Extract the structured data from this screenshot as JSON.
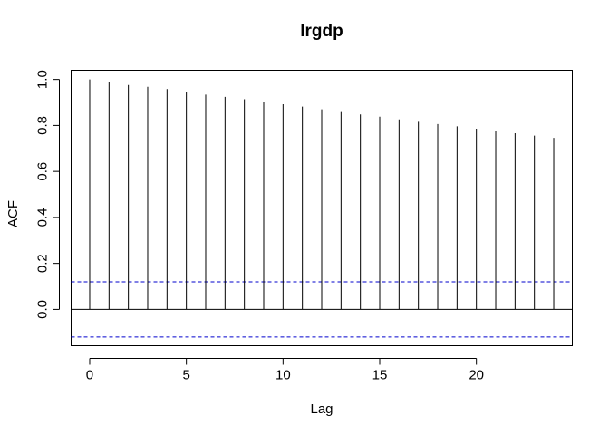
{
  "chart_data": {
    "type": "bar",
    "title": "lrgdp",
    "xlabel": "Lag",
    "ylabel": "ACF",
    "x": [
      0,
      1,
      2,
      3,
      4,
      5,
      6,
      7,
      8,
      9,
      10,
      11,
      12,
      13,
      14,
      15,
      16,
      17,
      18,
      19,
      20,
      21,
      22,
      23,
      24
    ],
    "values": [
      1.0,
      0.988,
      0.976,
      0.968,
      0.958,
      0.946,
      0.934,
      0.924,
      0.914,
      0.902,
      0.892,
      0.882,
      0.87,
      0.858,
      0.848,
      0.838,
      0.826,
      0.816,
      0.806,
      0.796,
      0.786,
      0.776,
      0.766,
      0.756,
      0.746
    ],
    "confidence_bound": 0.12,
    "xlim": [
      -0.96,
      24.96
    ],
    "ylim": [
      -0.158,
      1.04
    ],
    "xticks": [
      0,
      5,
      10,
      15,
      20
    ],
    "yticks": [
      0.0,
      0.2,
      0.4,
      0.6,
      0.8,
      1.0
    ],
    "ytick_labels": [
      "0.0",
      "0.2",
      "0.4",
      "0.6",
      "0.8",
      "1.0"
    ],
    "grid": false,
    "colors": {
      "lines": "#000000",
      "bound": "#0000cd"
    }
  }
}
